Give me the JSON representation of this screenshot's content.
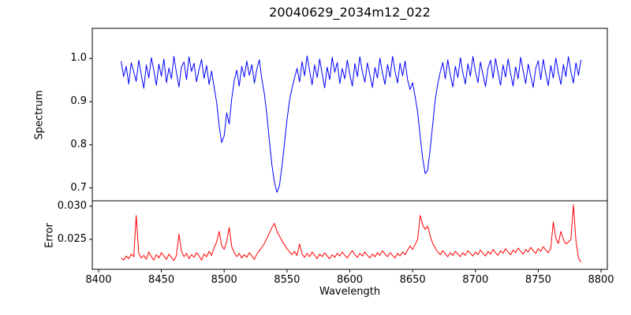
{
  "figure": {
    "title": "20040629_2034m12_022",
    "xlabel": "Wavelength",
    "background": "#ffffff"
  },
  "chart_data": [
    {
      "type": "line",
      "title": "20040629_2034m12_022",
      "ylabel": "Spectrum",
      "xlabel": "",
      "xlim": [
        8395,
        8805
      ],
      "ylim": [
        0.67,
        1.07
      ],
      "yticks": [
        0.7,
        0.8,
        0.9,
        1.0
      ],
      "ytick_labels": [
        "0.7",
        "0.8",
        "0.9",
        "1.0"
      ],
      "xticks": [
        8400,
        8450,
        8500,
        8550,
        8600,
        8650,
        8700,
        8750,
        8800
      ],
      "xtick_labels": [],
      "grid": false,
      "legend": false,
      "series": [
        {
          "name": "spectrum",
          "color": "#0000ff",
          "x": [
            8418,
            8420,
            8422,
            8424,
            8426,
            8428,
            8430,
            8432,
            8434,
            8436,
            8438,
            8440,
            8442,
            8444,
            8446,
            8448,
            8450,
            8452,
            8454,
            8456,
            8458,
            8460,
            8462,
            8464,
            8466,
            8468,
            8470,
            8472,
            8474,
            8476,
            8478,
            8480,
            8482,
            8484,
            8486,
            8488,
            8490,
            8492,
            8494,
            8496,
            8498,
            8500,
            8502,
            8504,
            8506,
            8508,
            8510,
            8512,
            8514,
            8516,
            8518,
            8520,
            8522,
            8524,
            8526,
            8528,
            8530,
            8532,
            8534,
            8536,
            8538,
            8540,
            8542,
            8544,
            8546,
            8548,
            8550,
            8552,
            8554,
            8556,
            8558,
            8560,
            8562,
            8564,
            8566,
            8568,
            8570,
            8572,
            8574,
            8576,
            8578,
            8580,
            8582,
            8584,
            8586,
            8588,
            8590,
            8592,
            8594,
            8596,
            8598,
            8600,
            8602,
            8604,
            8606,
            8608,
            8610,
            8612,
            8614,
            8616,
            8618,
            8620,
            8622,
            8624,
            8626,
            8628,
            8630,
            8632,
            8634,
            8636,
            8638,
            8640,
            8642,
            8644,
            8646,
            8648,
            8650,
            8652,
            8654,
            8656,
            8658,
            8660,
            8662,
            8664,
            8666,
            8668,
            8670,
            8672,
            8674,
            8676,
            8678,
            8680,
            8682,
            8684,
            8686,
            8688,
            8690,
            8692,
            8694,
            8696,
            8698,
            8700,
            8702,
            8704,
            8706,
            8708,
            8710,
            8712,
            8714,
            8716,
            8718,
            8720,
            8722,
            8724,
            8726,
            8728,
            8730,
            8732,
            8734,
            8736,
            8738,
            8740,
            8742,
            8744,
            8746,
            8748,
            8750,
            8752,
            8754,
            8756,
            8758,
            8760,
            8762,
            8764,
            8766,
            8768,
            8770,
            8772,
            8774,
            8776,
            8778,
            8780,
            8782,
            8784
          ],
          "y": [
            0.994,
            0.958,
            0.982,
            0.941,
            0.99,
            0.969,
            0.947,
            0.996,
            0.962,
            0.931,
            0.985,
            0.955,
            1.002,
            0.973,
            0.938,
            0.987,
            0.959,
            0.999,
            0.944,
            0.978,
            0.953,
            1.005,
            0.967,
            0.934,
            0.981,
            0.992,
            0.951,
            1.004,
            0.97,
            0.989,
            0.946,
            0.975,
            0.998,
            0.954,
            0.984,
            0.94,
            0.971,
            0.933,
            0.898,
            0.843,
            0.805,
            0.821,
            0.874,
            0.848,
            0.907,
            0.949,
            0.973,
            0.936,
            0.982,
            0.957,
            0.994,
            0.961,
            0.986,
            0.943,
            0.976,
            0.997,
            0.952,
            0.918,
            0.869,
            0.808,
            0.752,
            0.713,
            0.69,
            0.705,
            0.75,
            0.804,
            0.858,
            0.903,
            0.931,
            0.955,
            0.977,
            0.946,
            0.993,
            0.96,
            1.006,
            0.972,
            0.939,
            0.985,
            0.956,
            0.999,
            0.964,
            0.932,
            0.98,
            0.951,
            1.003,
            0.968,
            0.991,
            0.942,
            0.977,
            0.953,
            0.996,
            0.963,
            0.936,
            0.988,
            0.958,
            1.004,
            0.969,
            0.945,
            0.99,
            0.961,
            0.933,
            0.979,
            0.955,
            1.001,
            0.966,
            0.94,
            0.986,
            0.957,
            1.005,
            0.971,
            0.943,
            0.989,
            0.96,
            0.994,
            0.95,
            0.928,
            0.944,
            0.912,
            0.876,
            0.82,
            0.768,
            0.733,
            0.741,
            0.79,
            0.847,
            0.904,
            0.941,
            0.969,
            0.991,
            0.953,
            0.997,
            0.962,
            0.934,
            0.982,
            0.956,
            1.002,
            0.967,
            0.941,
            0.988,
            0.959,
            1.005,
            0.97,
            0.944,
            0.992,
            0.963,
            0.935,
            0.978,
            0.996,
            0.954,
            1.0,
            0.968,
            0.938,
            0.985,
            0.957,
            0.999,
            0.965,
            0.936,
            0.981,
            0.953,
            1.003,
            0.971,
            0.942,
            0.987,
            0.96,
            0.933,
            0.977,
            0.995,
            0.951,
            0.998,
            0.964,
            0.937,
            0.984,
            0.955,
            1.001,
            0.967,
            0.94,
            0.986,
            0.958,
            1.004,
            0.97,
            0.943,
            0.99,
            0.961,
            0.997
          ]
        }
      ]
    },
    {
      "type": "line",
      "title": "",
      "ylabel": "Error",
      "xlabel": "Wavelength",
      "xlim": [
        8395,
        8805
      ],
      "ylim": [
        0.0205,
        0.0308
      ],
      "yticks": [
        0.025,
        0.03
      ],
      "ytick_labels": [
        "0.025",
        "0.030"
      ],
      "xticks": [
        8400,
        8450,
        8500,
        8550,
        8600,
        8650,
        8700,
        8750,
        8800
      ],
      "xtick_labels": [
        "8400",
        "8450",
        "8500",
        "8550",
        "8600",
        "8650",
        "8700",
        "8750",
        "8800"
      ],
      "grid": false,
      "legend": false,
      "series": [
        {
          "name": "error",
          "color": "#ff0000",
          "x": [
            8418,
            8420,
            8422,
            8424,
            8426,
            8428,
            8430,
            8432,
            8434,
            8436,
            8438,
            8440,
            8442,
            8444,
            8446,
            8448,
            8450,
            8452,
            8454,
            8456,
            8458,
            8460,
            8462,
            8464,
            8466,
            8468,
            8470,
            8472,
            8474,
            8476,
            8478,
            8480,
            8482,
            8484,
            8486,
            8488,
            8490,
            8492,
            8494,
            8496,
            8498,
            8500,
            8502,
            8504,
            8506,
            8508,
            8510,
            8512,
            8514,
            8516,
            8518,
            8520,
            8522,
            8524,
            8526,
            8528,
            8530,
            8532,
            8534,
            8536,
            8538,
            8540,
            8542,
            8544,
            8546,
            8548,
            8550,
            8552,
            8554,
            8556,
            8558,
            8560,
            8562,
            8564,
            8566,
            8568,
            8570,
            8572,
            8574,
            8576,
            8578,
            8580,
            8582,
            8584,
            8586,
            8588,
            8590,
            8592,
            8594,
            8596,
            8598,
            8600,
            8602,
            8604,
            8606,
            8608,
            8610,
            8612,
            8614,
            8616,
            8618,
            8620,
            8622,
            8624,
            8626,
            8628,
            8630,
            8632,
            8634,
            8636,
            8638,
            8640,
            8642,
            8644,
            8646,
            8648,
            8650,
            8652,
            8654,
            8656,
            8658,
            8660,
            8662,
            8664,
            8666,
            8668,
            8670,
            8672,
            8674,
            8676,
            8678,
            8680,
            8682,
            8684,
            8686,
            8688,
            8690,
            8692,
            8694,
            8696,
            8698,
            8700,
            8702,
            8704,
            8706,
            8708,
            8710,
            8712,
            8714,
            8716,
            8718,
            8720,
            8722,
            8724,
            8726,
            8728,
            8730,
            8732,
            8734,
            8736,
            8738,
            8740,
            8742,
            8744,
            8746,
            8748,
            8750,
            8752,
            8754,
            8756,
            8758,
            8760,
            8762,
            8764,
            8766,
            8768,
            8770,
            8772,
            8774,
            8776,
            8778,
            8780,
            8782,
            8784
          ],
          "y": [
            0.0222,
            0.0219,
            0.0225,
            0.0221,
            0.0228,
            0.0224,
            0.0286,
            0.0229,
            0.0222,
            0.0226,
            0.022,
            0.0231,
            0.0224,
            0.0219,
            0.0227,
            0.0222,
            0.023,
            0.0225,
            0.022,
            0.0228,
            0.0223,
            0.0218,
            0.0226,
            0.0258,
            0.0232,
            0.0224,
            0.0229,
            0.0221,
            0.0227,
            0.0223,
            0.023,
            0.0225,
            0.0219,
            0.0228,
            0.0224,
            0.0232,
            0.0226,
            0.0238,
            0.0246,
            0.0262,
            0.0241,
            0.0235,
            0.0247,
            0.0268,
            0.0239,
            0.023,
            0.0224,
            0.0229,
            0.0222,
            0.0227,
            0.0223,
            0.023,
            0.0225,
            0.022,
            0.0228,
            0.0233,
            0.0238,
            0.0244,
            0.0252,
            0.026,
            0.0268,
            0.0274,
            0.0262,
            0.0255,
            0.0248,
            0.0242,
            0.0236,
            0.0231,
            0.0227,
            0.0232,
            0.0226,
            0.0243,
            0.0228,
            0.0223,
            0.0229,
            0.0224,
            0.0231,
            0.0226,
            0.0221,
            0.0228,
            0.0224,
            0.023,
            0.0225,
            0.0221,
            0.0227,
            0.0223,
            0.0229,
            0.0225,
            0.0231,
            0.0226,
            0.0222,
            0.0228,
            0.0233,
            0.0227,
            0.0223,
            0.0229,
            0.0225,
            0.0231,
            0.0226,
            0.0222,
            0.0228,
            0.0224,
            0.023,
            0.0226,
            0.0233,
            0.0228,
            0.0224,
            0.023,
            0.0226,
            0.0222,
            0.0229,
            0.0225,
            0.0231,
            0.0227,
            0.0234,
            0.024,
            0.0235,
            0.0242,
            0.025,
            0.0286,
            0.0272,
            0.0265,
            0.027,
            0.0255,
            0.0244,
            0.0237,
            0.0231,
            0.0227,
            0.0233,
            0.0228,
            0.0224,
            0.023,
            0.0226,
            0.0232,
            0.0228,
            0.0224,
            0.023,
            0.0226,
            0.0233,
            0.0229,
            0.0225,
            0.0231,
            0.0227,
            0.0234,
            0.0229,
            0.0225,
            0.0232,
            0.0228,
            0.0235,
            0.023,
            0.0226,
            0.0233,
            0.0229,
            0.0236,
            0.0231,
            0.0227,
            0.0234,
            0.023,
            0.0237,
            0.0232,
            0.0228,
            0.0235,
            0.0231,
            0.0238,
            0.0233,
            0.0229,
            0.0236,
            0.0232,
            0.0239,
            0.0234,
            0.023,
            0.0237,
            0.0276,
            0.0252,
            0.0244,
            0.0262,
            0.025,
            0.0243,
            0.0246,
            0.025,
            0.0302,
            0.0248,
            0.0222,
            0.0216
          ]
        }
      ]
    }
  ]
}
